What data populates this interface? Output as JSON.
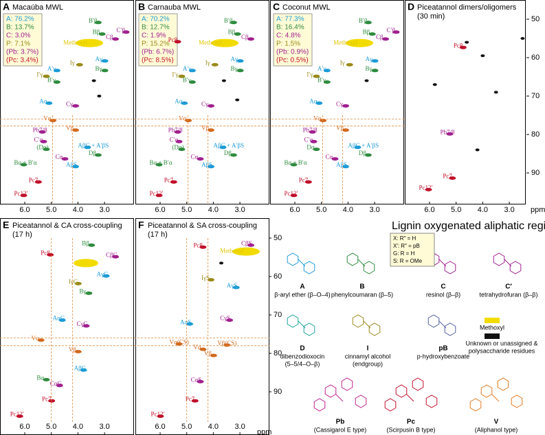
{
  "panels": [
    {
      "letter": "A",
      "title": "Macaúba MWL",
      "composition": [
        "A: 76.2%",
        "B: 13.7%",
        "C: 3.0%",
        "P: 7.1%",
        "(Pb: 3.7%)",
        "(Pc: 3.4%)"
      ],
      "peaks": [
        "B′β",
        "C′β",
        "Bβ",
        "Cβ",
        "Methoxyl",
        "Aγ",
        "Iγ",
        "Bγ",
        "A′γ",
        "I′γ",
        "B′γ",
        "Aα",
        "Cγ",
        "Vα",
        "Vβ",
        "Pb7/8",
        "C′α",
        "(Dα)",
        "AβG + A′βS",
        "Dβ",
        "Cα",
        "AβS",
        "Bα + B′α",
        "Pc7",
        "Pc12′"
      ]
    },
    {
      "letter": "B",
      "title": "Carnauba MWL",
      "composition": [
        "A: 70.2%",
        "B: 12.7%",
        "C: 1.9%",
        "P: 15.2%",
        "(Pb: 6.7%)",
        "(Pc: 8.5%)"
      ],
      "peaks": [
        "B′β",
        "Pc8",
        "Bβ",
        "Cβ",
        "Methoxyl",
        "Aγ",
        "Iγ",
        "Bγ",
        "A′γ",
        "I′γ",
        "B′γ",
        "Aα",
        "Cγ",
        "Vα",
        "Vβ",
        "Pb7/8",
        "C′α",
        "(Dα)",
        "AβG + A′βS",
        "Dβ",
        "Cα",
        "AβS",
        "Bα + B′α",
        "Pc7",
        "Pc12′"
      ]
    },
    {
      "letter": "C",
      "title": "Coconut MWL",
      "composition": [
        "A: 77.3%",
        "B: 16.4%",
        "C: 4.8%",
        "P: 1.5%",
        "(Pb: 0.9%)",
        "(Pc: 0.5%)"
      ],
      "peaks": [
        "B′β",
        "C′β",
        "Bβ",
        "Cβ",
        "Methoxyl",
        "Aγ",
        "Iγ",
        "Bγ",
        "A′γ",
        "I′γ",
        "B′γ",
        "Aα",
        "Cγ",
        "Vα",
        "Vβ",
        "Pb7/8",
        "C′α",
        "Dα",
        "AβG + A′βS",
        "Dβ",
        "Cα",
        "AβS",
        "Bα + B′α",
        "Pc7",
        "Pc12′"
      ]
    },
    {
      "letter": "D",
      "title": "Piceatannol dimers/oligomers",
      "subtitle": "(30 min)",
      "peaks": [
        "Pc8",
        "Pb7/8",
        "Pc7",
        "Pc12′"
      ]
    },
    {
      "letter": "E",
      "title": "Piceatannol & CA cross-coupling",
      "subtitle": "(17 h)",
      "peaks": [
        "Pc8",
        "Bβ",
        "CβG",
        "AγG",
        "IγG",
        "Bγ",
        "AαG",
        "CγG",
        "Vα",
        "Vβ",
        "AβG",
        "Bα",
        "CαG",
        "Pc7",
        "Pc12′"
      ]
    },
    {
      "letter": "F",
      "title": "Piceatannol & SA cross-coupling",
      "subtitle": "(17 h)",
      "peaks": [
        "Pc8",
        "CβS",
        "Methoxyl",
        "IγS",
        "AγS",
        "AαS",
        "CγS",
        "Vα(CS)",
        "Vα",
        "Vβ(CS)",
        "Vβ",
        "CαS",
        "Pc7",
        "Pc12′"
      ]
    }
  ],
  "x_axis": {
    "ticks": [
      "6.0",
      "5.0",
      "4.0",
      "3.0"
    ],
    "unit": "ppm"
  },
  "y_axis": {
    "ticks": [
      "50",
      "60",
      "70",
      "80",
      "90"
    ]
  },
  "region_title": "Lignin oxygenated aliphatic region",
  "key": [
    "X: R″ = H",
    "X′: R″ = pB",
    "G: R = H",
    "S: R = OMe"
  ],
  "structures": [
    {
      "letter": "A",
      "caption": "β-aryl ether (β–O–4)"
    },
    {
      "letter": "B",
      "caption": "phenylcoumaran (β–5)"
    },
    {
      "letter": "C",
      "caption": "resinol (β–β)"
    },
    {
      "letter": "C′",
      "caption": "tetrahydrofuran (β–β)"
    },
    {
      "letter": "D",
      "caption": "dibenzodioxocin",
      "caption2": "(5–5/4–O–β)"
    },
    {
      "letter": "I",
      "caption": "cinnamyl alcohol",
      "caption2": "(endgroup)"
    },
    {
      "letter": "pB",
      "caption": "p-hydroxybenzoate"
    },
    {
      "letter": "Pb",
      "caption": "(Cassigarol E type)"
    },
    {
      "letter": "Pc",
      "caption": "(Scirpusin B type)"
    },
    {
      "letter": "V",
      "caption": "(Aliphanol type)"
    }
  ],
  "legend": [
    "Methoxyl",
    "Unknown or unassigned &",
    "polysaccharide residues"
  ]
}
